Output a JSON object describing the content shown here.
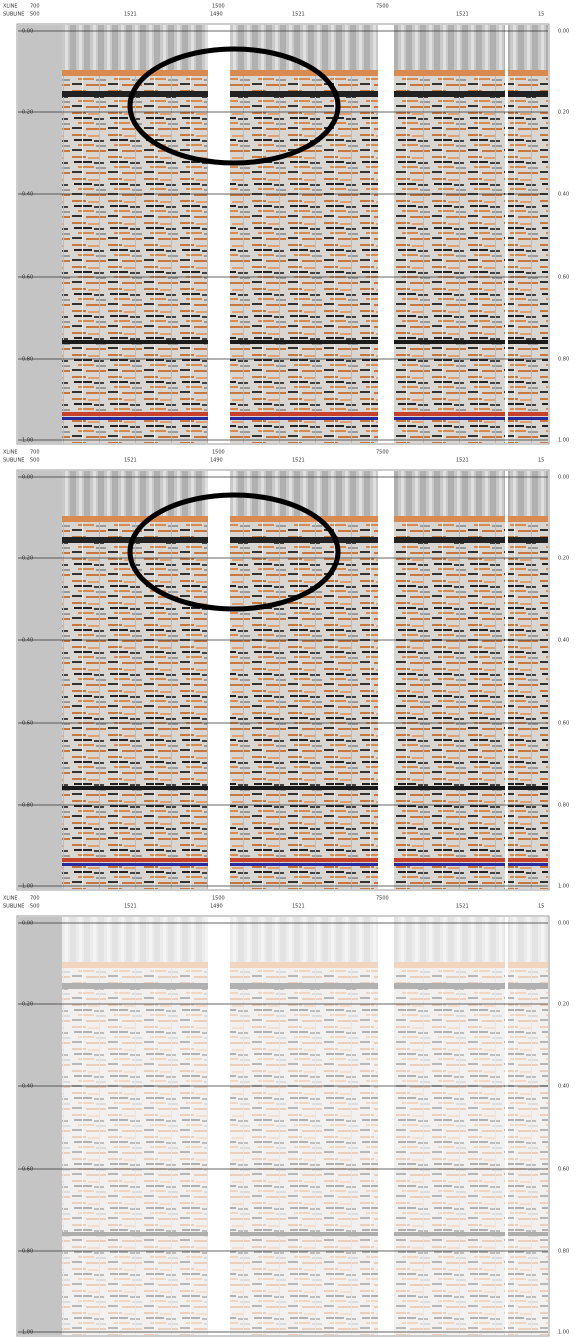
{
  "panels": [
    {
      "header": {
        "row1": [
          "XLINE",
          "700",
          "1500",
          "7500"
        ],
        "row2": [
          "SUBLINE",
          "500",
          "1521",
          "1490",
          "1521",
          "1521",
          "15"
        ]
      },
      "time_labels": [
        "0.00",
        "0.20",
        "0.40",
        "0.60",
        "0.80",
        "1.00"
      ]
    },
    {
      "header": {
        "row1": [
          "XLINE",
          "700",
          "1500",
          "7500"
        ],
        "row2": [
          "SUBLINE",
          "500",
          "1521",
          "1490",
          "1521",
          "1521",
          "15"
        ]
      },
      "time_labels": [
        "0.00",
        "0.20",
        "0.40",
        "0.60",
        "0.80",
        "1.00"
      ]
    },
    {
      "header": {
        "row1": [
          "XLINE",
          "700",
          "1500",
          "7500"
        ],
        "row2": [
          "SUBLINE",
          "500",
          "1521",
          "1490",
          "1521",
          "1521",
          "15"
        ]
      },
      "time_labels": [
        "0.00",
        "0.20",
        "0.40",
        "0.60",
        "0.80",
        "1.00"
      ]
    }
  ]
}
